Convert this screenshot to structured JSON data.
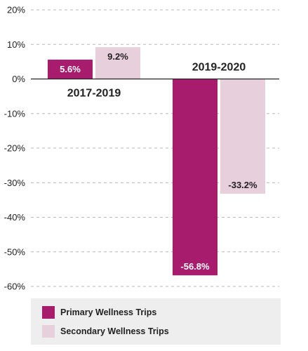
{
  "chart_data": {
    "type": "bar",
    "categories": [
      "2017-2019",
      "2019-2020"
    ],
    "series": [
      {
        "name": "Primary Wellness Trips",
        "color": "#a81c6e",
        "values": [
          5.6,
          -56.8
        ],
        "labels": [
          "5.6%",
          "-56.8%"
        ]
      },
      {
        "name": "Secondary Wellness Trips",
        "color": "#e8cfdc",
        "values": [
          9.2,
          -33.2
        ],
        "labels": [
          "9.2%",
          "-33.2%"
        ]
      }
    ],
    "yticks": [
      20,
      10,
      0,
      -10,
      -20,
      -30,
      -40,
      -50,
      -60
    ],
    "ytick_labels": [
      "20%",
      "10%",
      "0%",
      "-10%",
      "-20%",
      "-30%",
      "-40%",
      "-50%",
      "-60%"
    ],
    "ylim": [
      -60,
      20
    ],
    "grid": true,
    "legend_position": "bottom",
    "title": "",
    "xlabel": "",
    "ylabel": ""
  }
}
